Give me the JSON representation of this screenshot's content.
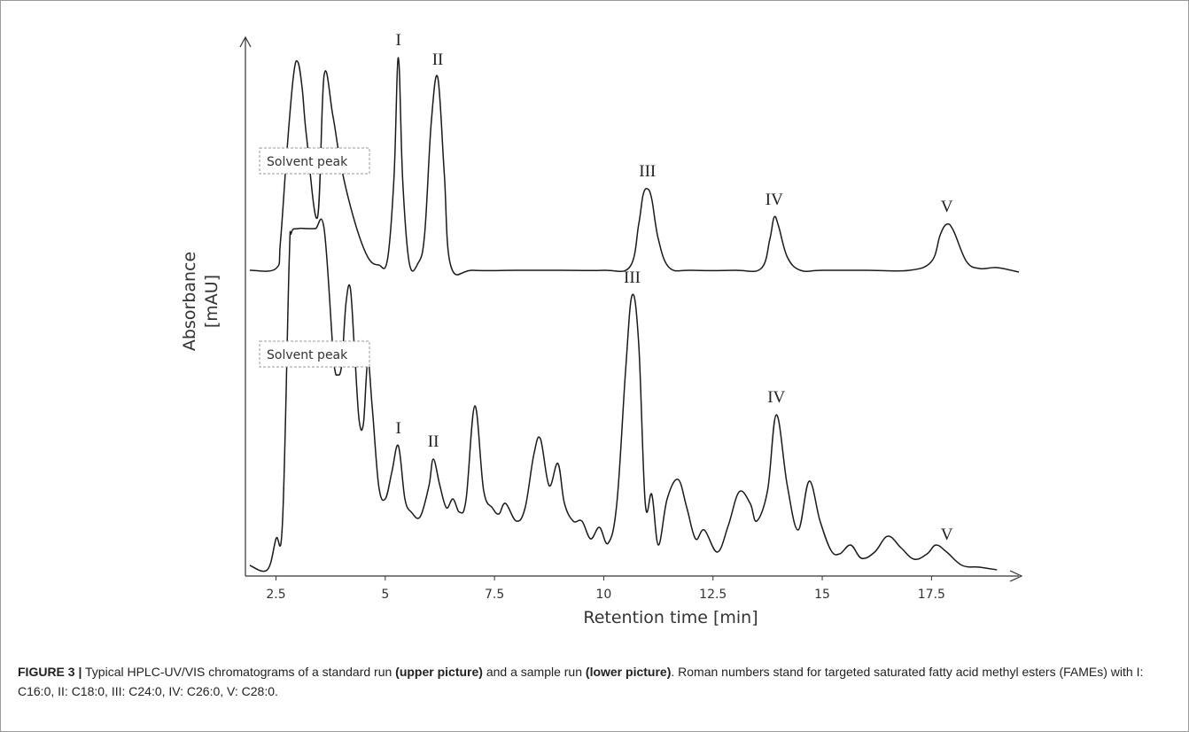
{
  "chart_data": {
    "type": "line",
    "xlabel": "Retention time [min]",
    "ylabel": "Absorbance [mAU]",
    "ylabel_lines": [
      "Absorbance",
      "[mAU]"
    ],
    "xticks": [
      2.5,
      5,
      7.5,
      10,
      12.5,
      15,
      17.5
    ],
    "xtick_labels": [
      "2.5",
      "5",
      "7.5",
      "10",
      "12.5",
      "15",
      "17.5"
    ],
    "xlim": [
      1.8,
      19.5
    ],
    "grid": false,
    "annotations": [
      {
        "panel": "upper",
        "text": "Solvent peak"
      },
      {
        "panel": "lower",
        "text": "Solvent peak"
      }
    ],
    "series": [
      {
        "trace": "upper",
        "baseline": 0,
        "x": [
          1.9,
          2.5,
          2.6,
          2.75,
          2.9,
          3.0,
          3.1,
          3.2,
          3.45,
          3.6,
          3.8,
          4.0,
          4.3,
          4.6,
          4.85,
          5.05,
          5.2,
          5.3,
          5.4,
          5.55,
          5.75,
          5.9,
          6.05,
          6.2,
          6.35,
          6.5,
          7.0,
          8.0,
          9.0,
          10.0,
          10.6,
          10.8,
          10.9,
          11.0,
          11.1,
          11.25,
          11.5,
          12.0,
          13.0,
          13.6,
          13.8,
          13.9,
          14.0,
          14.2,
          14.5,
          15.0,
          16.0,
          17.0,
          17.5,
          17.7,
          17.85,
          18.0,
          18.3,
          18.6,
          19.0,
          19.5
        ],
        "y": [
          0,
          2,
          32,
          135,
          220,
          235,
          205,
          150,
          60,
          220,
          175,
          115,
          55,
          15,
          6,
          12,
          105,
          240,
          100,
          8,
          8,
          40,
          165,
          218,
          110,
          5,
          0,
          0,
          0,
          0,
          4,
          52,
          85,
          92,
          80,
          35,
          3,
          0,
          0,
          2,
          35,
          60,
          50,
          15,
          0,
          0,
          0,
          0,
          10,
          40,
          52,
          45,
          10,
          2,
          3,
          -2
        ]
      },
      {
        "trace": "lower",
        "baseline": 0,
        "x": [
          1.9,
          2.3,
          2.5,
          2.65,
          2.8,
          2.85,
          3.0,
          3.2,
          3.4,
          3.6,
          3.8,
          3.85,
          3.9,
          4.0,
          4.1,
          4.2,
          4.3,
          4.4,
          4.5,
          4.6,
          4.7,
          4.85,
          5.0,
          5.15,
          5.3,
          5.45,
          5.6,
          5.8,
          6.0,
          6.1,
          6.25,
          6.4,
          6.55,
          6.7,
          6.85,
          7.05,
          7.25,
          7.45,
          7.6,
          7.75,
          8.0,
          8.2,
          8.4,
          8.55,
          8.75,
          8.95,
          9.1,
          9.3,
          9.5,
          9.7,
          9.9,
          10.1,
          10.3,
          10.5,
          10.65,
          10.8,
          10.95,
          11.1,
          11.25,
          11.45,
          11.7,
          11.9,
          12.1,
          12.3,
          12.6,
          12.85,
          13.1,
          13.35,
          13.5,
          13.75,
          13.95,
          14.2,
          14.45,
          14.7,
          14.95,
          15.2,
          15.4,
          15.65,
          15.9,
          16.2,
          16.5,
          16.8,
          17.1,
          17.4,
          17.6,
          17.85,
          18.2,
          18.6,
          19.0
        ],
        "y": [
          5,
          0,
          35,
          55,
          345,
          380,
          385,
          385,
          385,
          385,
          250,
          225,
          220,
          230,
          300,
          318,
          245,
          170,
          165,
          235,
          185,
          95,
          80,
          110,
          140,
          80,
          65,
          60,
          95,
          125,
          95,
          70,
          80,
          65,
          80,
          185,
          90,
          70,
          63,
          75,
          55,
          70,
          130,
          148,
          95,
          120,
          75,
          55,
          55,
          35,
          48,
          30,
          75,
          225,
          310,
          255,
          75,
          85,
          28,
          80,
          102,
          70,
          35,
          45,
          20,
          50,
          88,
          75,
          55,
          90,
          175,
          95,
          45,
          100,
          55,
          22,
          18,
          28,
          13,
          20,
          38,
          25,
          12,
          18,
          28,
          20,
          5,
          3,
          0
        ]
      }
    ],
    "peak_labels": [
      {
        "trace": "upper",
        "text": "I",
        "x": 5.3
      },
      {
        "trace": "upper",
        "text": "II",
        "x": 6.2
      },
      {
        "trace": "upper",
        "text": "III",
        "x": 11.0
      },
      {
        "trace": "upper",
        "text": "IV",
        "x": 13.9
      },
      {
        "trace": "upper",
        "text": "V",
        "x": 17.85
      },
      {
        "trace": "lower",
        "text": "I",
        "x": 5.3
      },
      {
        "trace": "lower",
        "text": "II",
        "x": 6.1
      },
      {
        "trace": "lower",
        "text": "III",
        "x": 10.65
      },
      {
        "trace": "lower",
        "text": "IV",
        "x": 13.95
      },
      {
        "trace": "lower",
        "text": "V",
        "x": 17.85
      }
    ]
  },
  "caption": {
    "label": "FIGURE 3 |",
    "text_1": " Typical HPLC-UV/VIS chromatograms of a standard run ",
    "bold_1": "(upper picture)",
    "text_2": " and a sample run ",
    "bold_2": "(lower picture)",
    "text_3": ". Roman numbers stand for targeted saturated fatty acid methyl esters (FAMEs) with I: C16:0, II: C18:0, III: C24:0, IV: C26:0, V: C28:0."
  },
  "colors": {
    "trace": "#1a1a1a",
    "axis": "#333333",
    "annotation_border": "#999999",
    "frame": "#9a9a9a"
  }
}
